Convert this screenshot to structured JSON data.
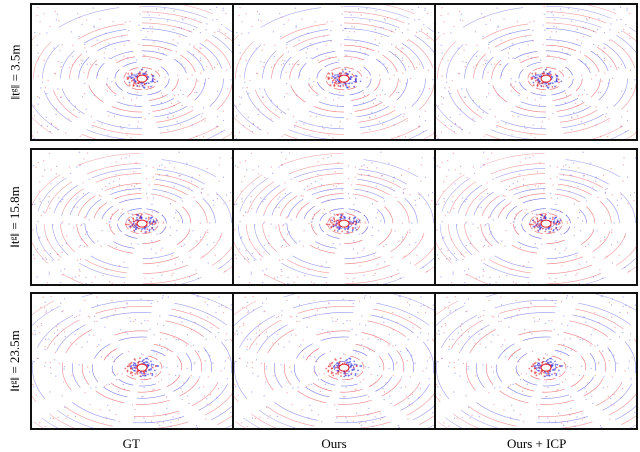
{
  "rows": [
    {
      "label": "‖t^g‖ = 3.5m",
      "label_display": "‖tᵍ‖ = 3.5m"
    },
    {
      "label": "‖t^g‖ = 15.8m",
      "label_display": "‖tᵍ‖ = 15.8m"
    },
    {
      "label": "‖t^g‖ = 23.5m",
      "label_display": "‖tᵍ‖ = 23.5m"
    }
  ],
  "columns": [
    "GT",
    "Ours",
    "Ours + ICP"
  ],
  "colors": {
    "source": "#e0202a",
    "target": "#2a2ae0",
    "frame": "#111111"
  }
}
